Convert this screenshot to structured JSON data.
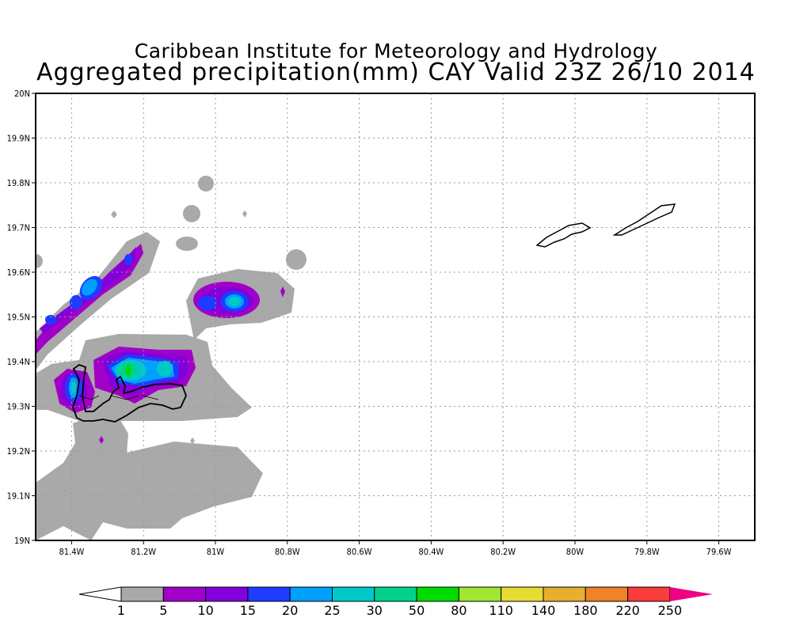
{
  "title": {
    "line1": "Caribbean Institute for Meteorology and Hydrology",
    "line2": "Aggregated precipitation(mm) CAY Valid 23Z 26/10 2014"
  },
  "axes": {
    "x_ticks": [
      "81.4W",
      "81.2W",
      "81W",
      "80.8W",
      "80.6W",
      "80.4W",
      "80.2W",
      "80W",
      "79.8W",
      "79.6W"
    ],
    "x_values": [
      -81.4,
      -81.2,
      -81.0,
      -80.8,
      -80.6,
      -80.4,
      -80.2,
      -80.0,
      -79.8,
      -79.6
    ],
    "y_ticks": [
      "19N",
      "19.1N",
      "19.2N",
      "19.3N",
      "19.4N",
      "19.5N",
      "19.6N",
      "19.7N",
      "19.8N",
      "19.9N",
      "20N"
    ],
    "y_values": [
      19.0,
      19.1,
      19.2,
      19.3,
      19.4,
      19.5,
      19.6,
      19.7,
      19.8,
      19.9,
      20.0
    ],
    "lon_range": [
      -81.5,
      -79.5
    ],
    "lat_range": [
      19.0,
      20.0
    ]
  },
  "colorbar": {
    "labels": [
      "1",
      "5",
      "10",
      "15",
      "20",
      "25",
      "30",
      "50",
      "80",
      "110",
      "140",
      "180",
      "220",
      "250"
    ],
    "colors": [
      "#a9a9a9",
      "#a000c8",
      "#8200dc",
      "#1e3cff",
      "#00a0ff",
      "#00c8c8",
      "#00d28c",
      "#00dc00",
      "#a0e632",
      "#e6dc32",
      "#e6af2d",
      "#f08228",
      "#fa3c3c",
      "#f00082"
    ],
    "under_color": "#ffffff"
  }
}
